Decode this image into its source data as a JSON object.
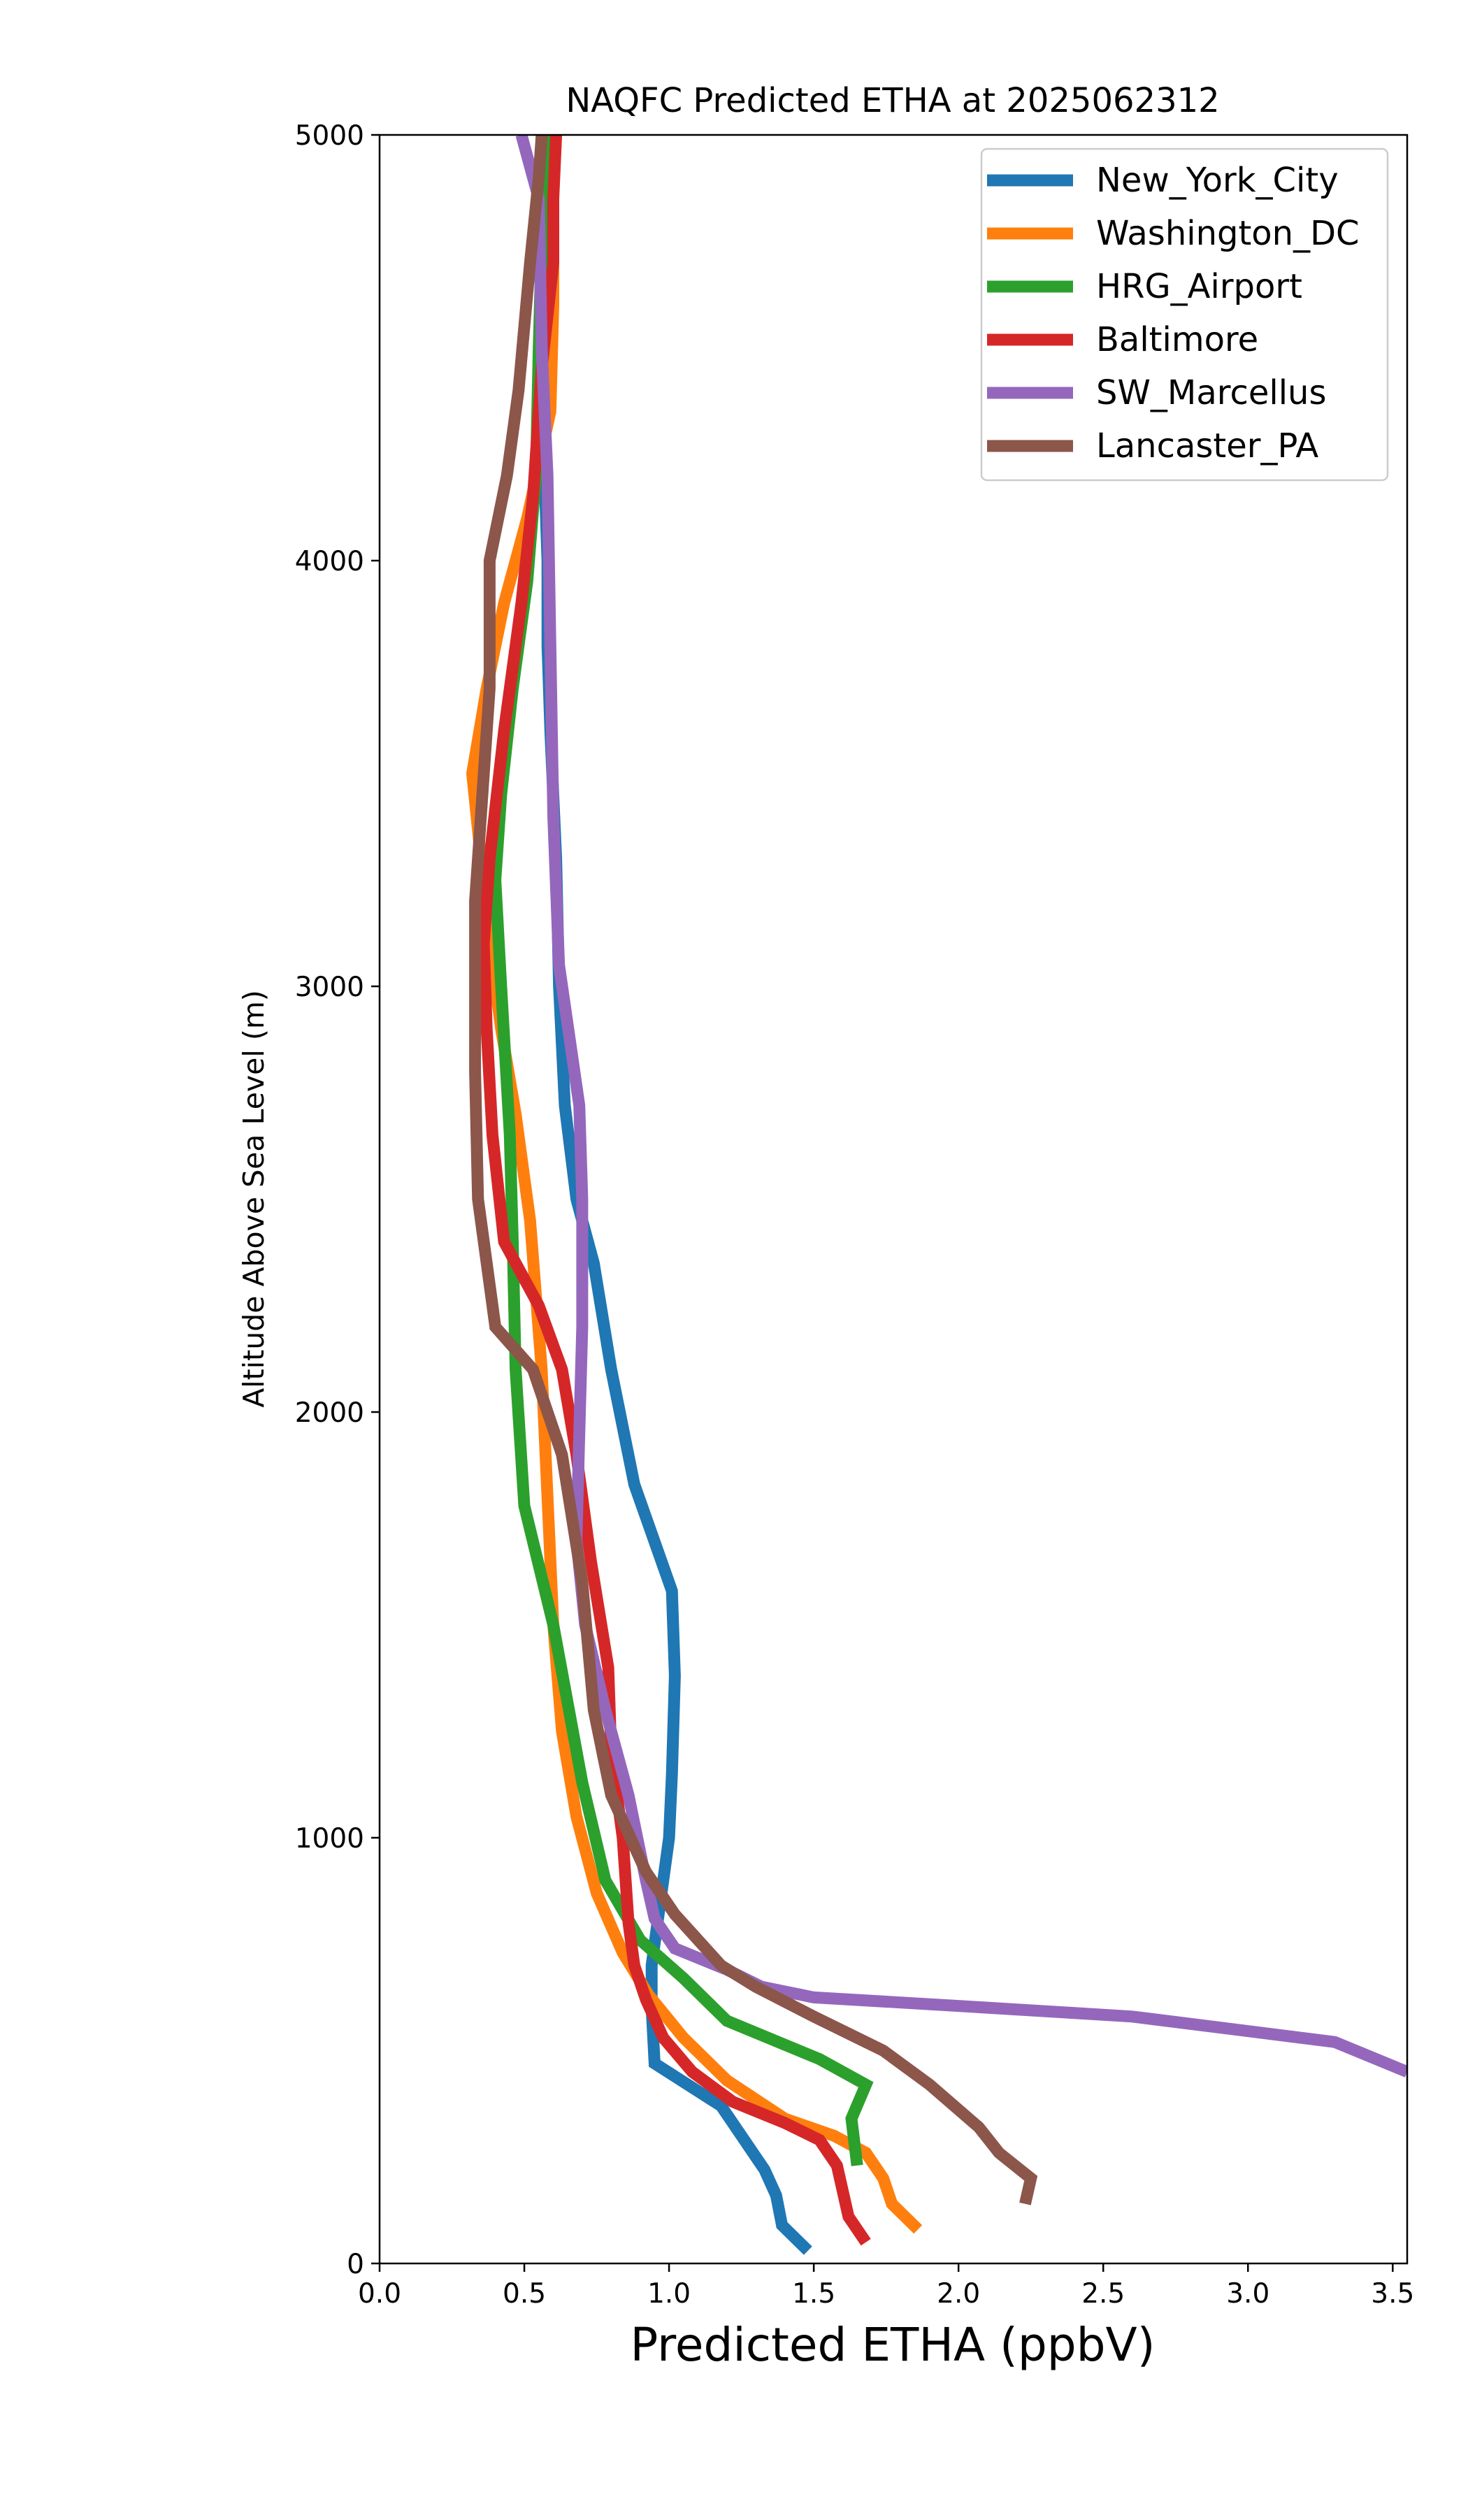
{
  "chart_data": {
    "type": "line",
    "title": "NAQFC Predicted ETHA at 2025062312",
    "xlabel": "Predicted ETHA (ppbV)",
    "ylabel": "Altitude Above Sea Level (m)",
    "xlim": [
      0,
      3.55
    ],
    "ylim": [
      0,
      5000
    ],
    "xticks": [
      "0.0",
      "0.5",
      "1.0",
      "1.5",
      "2.0",
      "2.5",
      "3.0",
      "3.5"
    ],
    "yticks": [
      "0",
      "1000",
      "2000",
      "3000",
      "4000",
      "5000"
    ],
    "grid": false,
    "legend_position": "top-right",
    "series": [
      {
        "name": "New_York_City",
        "color": "#1f77b4",
        "points": [
          [
            1.48,
            30
          ],
          [
            1.39,
            90
          ],
          [
            1.37,
            160
          ],
          [
            1.33,
            220
          ],
          [
            1.18,
            370
          ],
          [
            0.95,
            470
          ],
          [
            0.94,
            600
          ],
          [
            0.94,
            700
          ],
          [
            0.96,
            800
          ],
          [
            0.98,
            900
          ],
          [
            1.0,
            1000
          ],
          [
            1.01,
            1150
          ],
          [
            1.02,
            1380
          ],
          [
            1.01,
            1580
          ],
          [
            0.88,
            1830
          ],
          [
            0.8,
            2100
          ],
          [
            0.74,
            2350
          ],
          [
            0.68,
            2500
          ],
          [
            0.64,
            2720
          ],
          [
            0.62,
            3000
          ],
          [
            0.61,
            3300
          ],
          [
            0.59,
            3600
          ],
          [
            0.58,
            3800
          ],
          [
            0.58,
            4000
          ],
          [
            0.57,
            4200
          ],
          [
            0.57,
            4500
          ],
          [
            0.58,
            4800
          ],
          [
            0.59,
            5000
          ]
        ]
      },
      {
        "name": "Washington_DC",
        "color": "#ff7f0e",
        "points": [
          [
            1.86,
            80
          ],
          [
            1.77,
            140
          ],
          [
            1.74,
            200
          ],
          [
            1.68,
            260
          ],
          [
            1.57,
            300
          ],
          [
            1.4,
            340
          ],
          [
            1.2,
            430
          ],
          [
            1.05,
            530
          ],
          [
            0.93,
            630
          ],
          [
            0.84,
            730
          ],
          [
            0.75,
            870
          ],
          [
            0.68,
            1050
          ],
          [
            0.63,
            1250
          ],
          [
            0.6,
            1500
          ],
          [
            0.58,
            1800
          ],
          [
            0.56,
            2100
          ],
          [
            0.52,
            2450
          ],
          [
            0.47,
            2700
          ],
          [
            0.42,
            2900
          ],
          [
            0.38,
            3100
          ],
          [
            0.35,
            3300
          ],
          [
            0.32,
            3500
          ],
          [
            0.37,
            3700
          ],
          [
            0.43,
            3900
          ],
          [
            0.51,
            4100
          ],
          [
            0.59,
            4350
          ],
          [
            0.6,
            4600
          ],
          [
            0.6,
            5000
          ]
        ]
      },
      {
        "name": "HRG_Airport",
        "color": "#2ca02c",
        "points": [
          [
            1.65,
            230
          ],
          [
            1.63,
            340
          ],
          [
            1.68,
            420
          ],
          [
            1.52,
            480
          ],
          [
            1.2,
            570
          ],
          [
            1.05,
            670
          ],
          [
            0.9,
            760
          ],
          [
            0.78,
            900
          ],
          [
            0.7,
            1130
          ],
          [
            0.6,
            1500
          ],
          [
            0.5,
            1780
          ],
          [
            0.47,
            2100
          ],
          [
            0.46,
            2400
          ],
          [
            0.45,
            2650
          ],
          [
            0.42,
            3000
          ],
          [
            0.4,
            3250
          ],
          [
            0.42,
            3450
          ],
          [
            0.46,
            3700
          ],
          [
            0.51,
            3950
          ],
          [
            0.54,
            4200
          ],
          [
            0.55,
            4500
          ],
          [
            0.56,
            4750
          ],
          [
            0.57,
            5000
          ]
        ]
      },
      {
        "name": "Baltimore",
        "color": "#d62728",
        "points": [
          [
            1.68,
            50
          ],
          [
            1.62,
            110
          ],
          [
            1.58,
            230
          ],
          [
            1.52,
            290
          ],
          [
            1.4,
            330
          ],
          [
            1.22,
            380
          ],
          [
            1.08,
            450
          ],
          [
            0.98,
            530
          ],
          [
            0.92,
            620
          ],
          [
            0.88,
            700
          ],
          [
            0.86,
            800
          ],
          [
            0.84,
            1000
          ],
          [
            0.8,
            1200
          ],
          [
            0.79,
            1400
          ],
          [
            0.73,
            1650
          ],
          [
            0.68,
            1900
          ],
          [
            0.63,
            2100
          ],
          [
            0.55,
            2250
          ],
          [
            0.43,
            2400
          ],
          [
            0.39,
            2650
          ],
          [
            0.37,
            2900
          ],
          [
            0.36,
            3100
          ],
          [
            0.38,
            3300
          ],
          [
            0.43,
            3600
          ],
          [
            0.49,
            3900
          ],
          [
            0.53,
            4150
          ],
          [
            0.56,
            4450
          ],
          [
            0.6,
            4700
          ],
          [
            0.6,
            4850
          ],
          [
            0.61,
            5000
          ]
        ]
      },
      {
        "name": "SW_Marcellus",
        "color": "#9467bd",
        "points": [
          [
            3.55,
            450
          ],
          [
            3.3,
            520
          ],
          [
            2.6,
            580
          ],
          [
            2.0,
            605
          ],
          [
            1.5,
            625
          ],
          [
            1.32,
            650
          ],
          [
            1.2,
            690
          ],
          [
            1.02,
            740
          ],
          [
            0.95,
            810
          ],
          [
            0.92,
            900
          ],
          [
            0.86,
            1100
          ],
          [
            0.78,
            1300
          ],
          [
            0.71,
            1500
          ],
          [
            0.68,
            1700
          ],
          [
            0.69,
            1950
          ],
          [
            0.7,
            2200
          ],
          [
            0.7,
            2500
          ],
          [
            0.69,
            2720
          ],
          [
            0.62,
            3050
          ],
          [
            0.6,
            3400
          ],
          [
            0.59,
            3800
          ],
          [
            0.58,
            4200
          ],
          [
            0.56,
            4500
          ],
          [
            0.55,
            4850
          ],
          [
            0.49,
            5000
          ]
        ]
      },
      {
        "name": "Lancaster_PA",
        "color": "#8c564b",
        "points": [
          [
            2.23,
            140
          ],
          [
            2.25,
            200
          ],
          [
            2.14,
            260
          ],
          [
            2.07,
            320
          ],
          [
            1.9,
            420
          ],
          [
            1.74,
            500
          ],
          [
            1.5,
            580
          ],
          [
            1.3,
            650
          ],
          [
            1.18,
            700
          ],
          [
            1.02,
            820
          ],
          [
            0.92,
            920
          ],
          [
            0.8,
            1100
          ],
          [
            0.74,
            1300
          ],
          [
            0.7,
            1600
          ],
          [
            0.63,
            1900
          ],
          [
            0.53,
            2100
          ],
          [
            0.4,
            2200
          ],
          [
            0.34,
            2500
          ],
          [
            0.33,
            2800
          ],
          [
            0.33,
            3200
          ],
          [
            0.36,
            3500
          ],
          [
            0.38,
            3700
          ],
          [
            0.38,
            4000
          ],
          [
            0.44,
            4200
          ],
          [
            0.48,
            4400
          ],
          [
            0.52,
            4700
          ],
          [
            0.55,
            4900
          ],
          [
            0.56,
            5000
          ]
        ]
      }
    ]
  }
}
